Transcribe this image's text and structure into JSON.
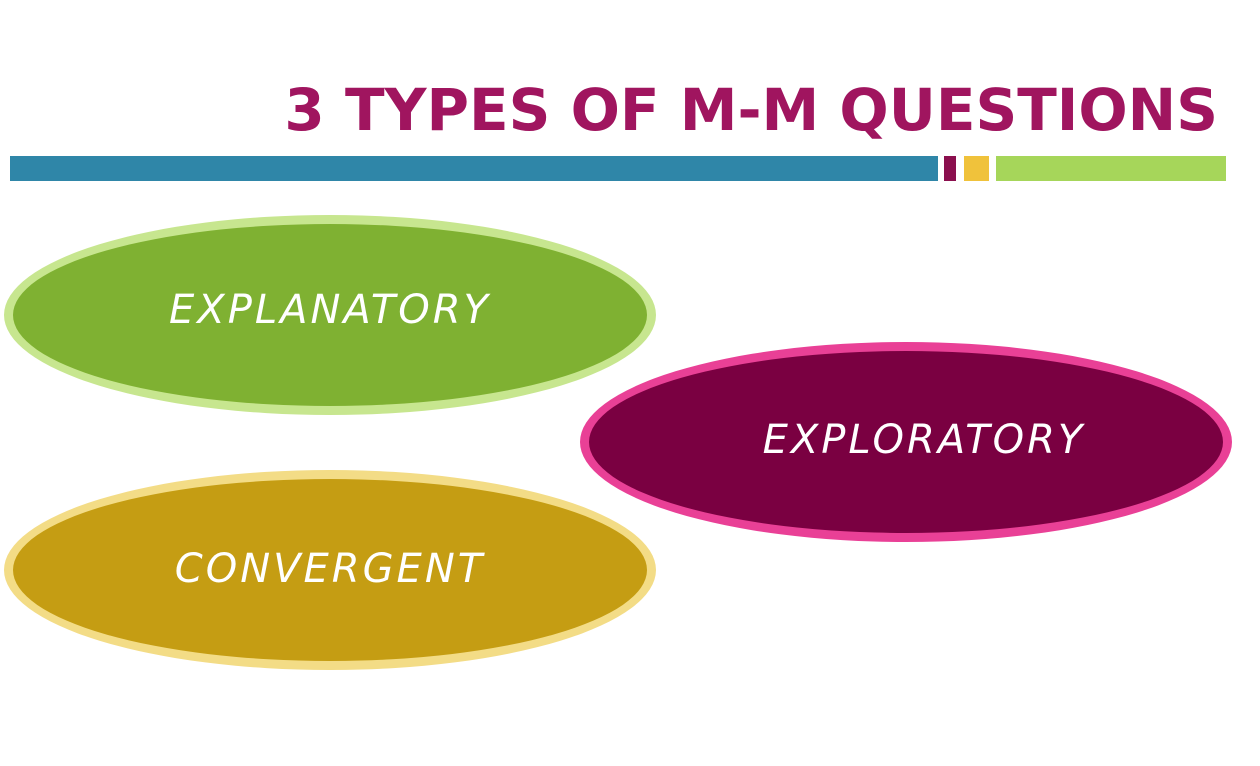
{
  "slide": {
    "title": "3 TYPES OF M-M QUESTIONS"
  },
  "colors": {
    "title": "#a0155f",
    "bar_blue": "#2f86a8",
    "bar_magenta": "#8b0f4e",
    "bar_yellow": "#f0c23b",
    "bar_green": "#a6d65a"
  },
  "ovals": [
    {
      "label": "EXPLANATORY",
      "fill": "#7fb132",
      "border": "#c7e68f"
    },
    {
      "label": "EXPLORATORY",
      "fill": "#7a0041",
      "border": "#e94096"
    },
    {
      "label": "CONVERGENT",
      "fill": "#c59d13",
      "border": "#f3dc86"
    }
  ]
}
